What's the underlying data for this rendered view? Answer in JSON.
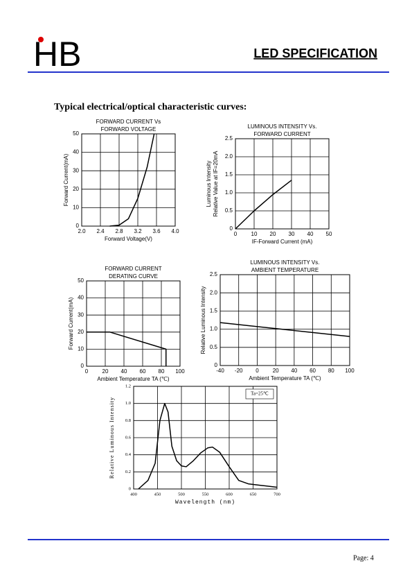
{
  "header": {
    "logo": "HB",
    "title": "LED SPECIFICATION"
  },
  "section_title": "Typical electrical/optical characteristic curves:",
  "chart_data": [
    {
      "type": "line",
      "title": [
        "FORWARD CURRENT Vs",
        "FORWARD VOLTAGE"
      ],
      "x_label": "Forward Voltage(V)",
      "y_label": [
        "Forward Current(mA)"
      ],
      "x": [
        2.6,
        2.8,
        3.0,
        3.2,
        3.4,
        3.55
      ],
      "values": [
        0,
        0.5,
        4,
        15,
        32,
        50
      ],
      "color": "#000000",
      "xlim": [
        2.0,
        4.0
      ],
      "xticks": [
        {
          "value": 2.0,
          "label": "2.0"
        },
        2.4,
        2.8,
        3.2,
        3.6,
        {
          "value": 4.0,
          "label": "4.0"
        }
      ],
      "ylim": [
        0,
        50
      ],
      "yticks": [
        0,
        10,
        20,
        30,
        40,
        50
      ],
      "grid": true
    },
    {
      "type": "line",
      "title": [
        "LUMINOUS INTENSITY Vs.",
        "FORWARD CURRENT"
      ],
      "x_label": "IF-Forward Current (mA)",
      "y_label": [
        "Luminous Intensity",
        "Relative Value at IF=20mA"
      ],
      "x": [
        0,
        5,
        10,
        20,
        30
      ],
      "values": [
        0,
        0.25,
        0.5,
        0.95,
        1.35
      ],
      "color": "#000000",
      "xlim": [
        0,
        50
      ],
      "xticks": [
        0,
        10,
        20,
        30,
        40,
        50
      ],
      "ylim": [
        0,
        2.5
      ],
      "yticks": [
        0,
        0.5,
        {
          "value": 1.0,
          "label": "1.0"
        },
        1.5,
        {
          "value": 2.0,
          "label": "2.0"
        },
        2.5
      ],
      "grid": true
    },
    {
      "type": "line",
      "title": [
        "FORWARD CURRENT",
        "DERATING CURVE"
      ],
      "x_label": "Ambient Temperature TA (℃)",
      "y_label": [
        "Forward Current(mA)"
      ],
      "x": [
        0,
        25,
        85,
        85
      ],
      "values": [
        20,
        20,
        10,
        0
      ],
      "color": "#000000",
      "xlim": [
        0,
        100
      ],
      "xticks": [
        0,
        20,
        40,
        60,
        80,
        100
      ],
      "ylim": [
        0,
        50
      ],
      "yticks": [
        0,
        10,
        20,
        30,
        40,
        50
      ],
      "grid": true
    },
    {
      "type": "line",
      "title": [
        "LUMINOUS INTENSITY Vs.",
        "AMBIENT TEMPERATURE"
      ],
      "x_label": "Ambient Temperature TA (℃)",
      "y_label": [
        "Relative Luminous Intensity"
      ],
      "x": [
        -40,
        100
      ],
      "values": [
        1.18,
        0.8
      ],
      "color": "#000000",
      "xlim": [
        -40,
        100
      ],
      "xticks": [
        -40,
        -20,
        0,
        20,
        40,
        60,
        80,
        100
      ],
      "ylim": [
        0,
        2.5
      ],
      "yticks": [
        0,
        0.5,
        {
          "value": 1.0,
          "label": "1.0"
        },
        1.5,
        {
          "value": 2.0,
          "label": "2.0"
        },
        2.5
      ],
      "grid": true
    },
    {
      "type": "line",
      "title": [],
      "annotation": "Ta=25℃",
      "x_label": "Wavelength (nm)",
      "y_label": [
        "Relative Luminous Intensity"
      ],
      "x": [
        410,
        430,
        445,
        455,
        465,
        472,
        480,
        490,
        500,
        510,
        525,
        540,
        555,
        565,
        580,
        600,
        620,
        640,
        670,
        700
      ],
      "values": [
        0,
        0.1,
        0.3,
        0.8,
        1.0,
        0.9,
        0.5,
        0.33,
        0.27,
        0.26,
        0.33,
        0.42,
        0.48,
        0.49,
        0.43,
        0.26,
        0.1,
        0.06,
        0.04,
        0.02
      ],
      "color": "#000000",
      "xlim": [
        400,
        700
      ],
      "xticks": [
        400,
        450,
        500,
        550,
        600,
        650,
        700
      ],
      "ylim": [
        0,
        1.2
      ],
      "yticks": [
        0,
        0.2,
        0.4,
        0.6,
        0.8,
        {
          "value": 1.0,
          "label": "1.0"
        },
        1.2
      ],
      "grid": true
    }
  ],
  "footer": {
    "page": "Page: 4"
  }
}
